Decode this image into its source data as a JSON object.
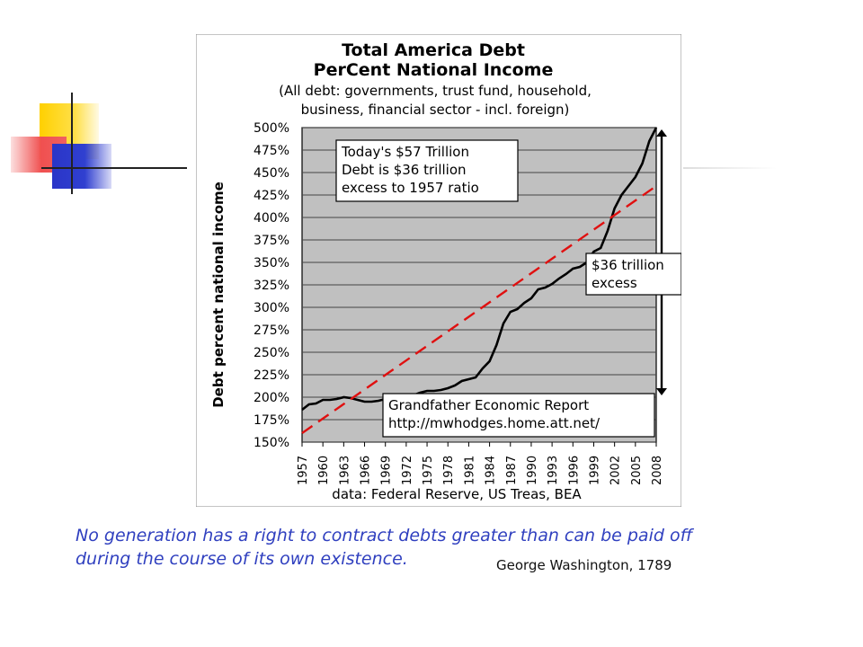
{
  "slide": {
    "quote_line1": "No generation has a right to contract debts greater than can be paid off",
    "quote_line2": "during the course of its own existence.",
    "attribution": "George Washington, 1789",
    "quote_color": "#2f3fbf"
  },
  "chart_data": {
    "type": "line",
    "title": "Total America Debt",
    "subtitle": "PerCent National Income",
    "subtitle2": "(All debt: governments, trust fund, household,",
    "subtitle3": "business, financial sector - incl. foreign)",
    "ylabel": "Debt percent national income",
    "xlabel": "",
    "source": "data: Federal Reserve, US Treas, BEA",
    "ylim": [
      150,
      500
    ],
    "xlim": [
      1957,
      2008
    ],
    "ytick_labels": [
      "500%",
      "475%",
      "450%",
      "425%",
      "400%",
      "375%",
      "350%",
      "325%",
      "300%",
      "275%",
      "250%",
      "225%",
      "200%",
      "175%",
      "150%"
    ],
    "xtick_labels": [
      "1957",
      "1960",
      "1963",
      "1966",
      "1969",
      "1972",
      "1975",
      "1978",
      "1981",
      "1984",
      "1987",
      "1990",
      "1993",
      "1996",
      "1999",
      "2002",
      "2005",
      "2008"
    ],
    "grid": true,
    "plot_bg": "#c0c0c0",
    "series": [
      {
        "style": "solid",
        "color": "#000000",
        "x": [
          1957,
          1958,
          1959,
          1960,
          1961,
          1962,
          1963,
          1964,
          1965,
          1966,
          1967,
          1968,
          1969,
          1970,
          1971,
          1972,
          1973,
          1974,
          1975,
          1976,
          1977,
          1978,
          1979,
          1980,
          1981,
          1982,
          1983,
          1984,
          1985,
          1986,
          1987,
          1988,
          1989,
          1990,
          1991,
          1992,
          1993,
          1994,
          1995,
          1996,
          1997,
          1998,
          1999,
          2000,
          2001,
          2002,
          2003,
          2004,
          2005,
          2006,
          2007,
          2008
        ],
        "values": [
          186,
          192,
          193,
          197,
          197,
          198,
          200,
          199,
          197,
          195,
          195,
          196,
          198,
          199,
          200,
          201,
          202,
          205,
          207,
          207,
          208,
          210,
          213,
          218,
          220,
          222,
          232,
          240,
          258,
          282,
          295,
          298,
          305,
          310,
          320,
          322,
          326,
          332,
          337,
          343,
          345,
          350,
          362,
          366,
          385,
          410,
          425,
          435,
          445,
          460,
          485,
          500
        ]
      },
      {
        "style": "dashed",
        "color": "#e01010",
        "x": [
          1957,
          2008
        ],
        "values": [
          160,
          435
        ]
      }
    ],
    "annotations": [
      {
        "lines": [
          "Today's $57 Trillion",
          "Debt is $36 trillion",
          "excess to 1957 ratio"
        ]
      },
      {
        "lines": [
          "$36 trillion",
          "excess"
        ]
      },
      {
        "lines": [
          "Grandfather Economic Report",
          "http://mwhodges.home.att.net/"
        ]
      }
    ]
  },
  "decor": {
    "yellow": "#ffd000",
    "red": "#f05050",
    "blue": "#2a35c8"
  }
}
